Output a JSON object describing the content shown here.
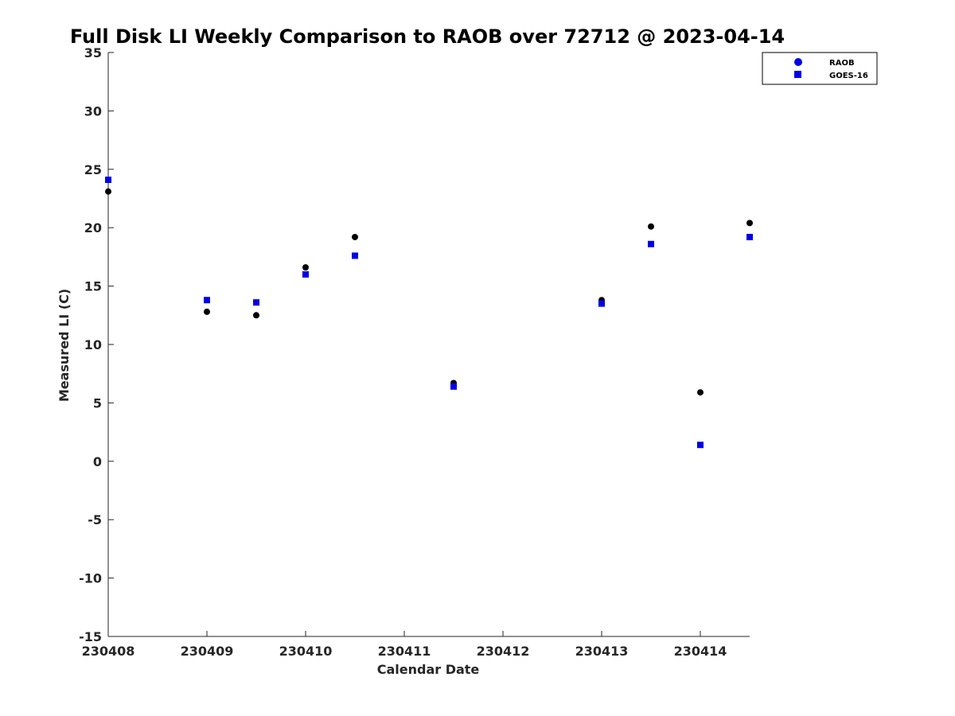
{
  "chart_data": {
    "type": "scatter",
    "title": "Full Disk LI Weekly Comparison to RAOB over 72712 @ 2023-04-14",
    "xlabel": "Calendar Date",
    "ylabel": "Measured LI (C)",
    "xlim": [
      "230408",
      "230414 12Z"
    ],
    "ylim": [
      -15,
      35
    ],
    "x_ticks": [
      "230408",
      "230409",
      "230410",
      "230411",
      "230412",
      "230413",
      "230414"
    ],
    "y_ticks": [
      35,
      30,
      25,
      20,
      15,
      10,
      5,
      0,
      -5,
      -10,
      -15
    ],
    "grid": false,
    "legend_position": "top-right",
    "series": [
      {
        "name": "RAOB",
        "marker": "circle",
        "color": "#000000",
        "legend_color": "#0000e6",
        "x": [
          "230408 00Z",
          "230409 00Z",
          "230409 12Z",
          "230410 00Z",
          "230410 12Z",
          "230411 12Z",
          "230413 00Z",
          "230413 12Z",
          "230414 00Z",
          "230414 12Z"
        ],
        "y": [
          23.1,
          12.8,
          12.5,
          16.6,
          19.2,
          6.7,
          13.8,
          20.1,
          5.9,
          20.4
        ]
      },
      {
        "name": "GOES-16",
        "marker": "square",
        "color": "#0000e6",
        "x": [
          "230408 00Z",
          "230409 00Z",
          "230409 12Z",
          "230410 00Z",
          "230410 12Z",
          "230411 12Z",
          "230413 00Z",
          "230413 12Z",
          "230414 00Z",
          "230414 12Z"
        ],
        "y": [
          24.1,
          13.8,
          13.6,
          16.0,
          17.6,
          6.4,
          13.5,
          18.6,
          1.4,
          19.2
        ]
      }
    ]
  }
}
